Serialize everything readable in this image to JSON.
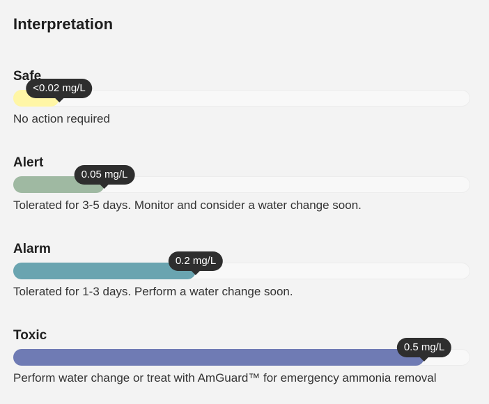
{
  "title": "Interpretation",
  "levels": [
    {
      "label": "Safe",
      "value": "<0.02 mg/L",
      "fill_ratio": 0.1,
      "color": "#fff6a6",
      "description": "No action required"
    },
    {
      "label": "Alert",
      "value": "0.05 mg/L",
      "fill_ratio": 0.2,
      "color": "#9fb9a2",
      "description": "Tolerated for 3-5 days. Monitor and consider a water change soon."
    },
    {
      "label": "Alarm",
      "value": "0.2 mg/L",
      "fill_ratio": 0.4,
      "color": "#6aa4b0",
      "description": "Tolerated for 1-3 days. Perform a water change soon."
    },
    {
      "label": "Toxic",
      "value": "0.5 mg/L",
      "fill_ratio": 0.9,
      "color": "#6f7bb4",
      "description": "Perform water change or treat with AmGuard™ for emergency ammonia removal"
    }
  ]
}
